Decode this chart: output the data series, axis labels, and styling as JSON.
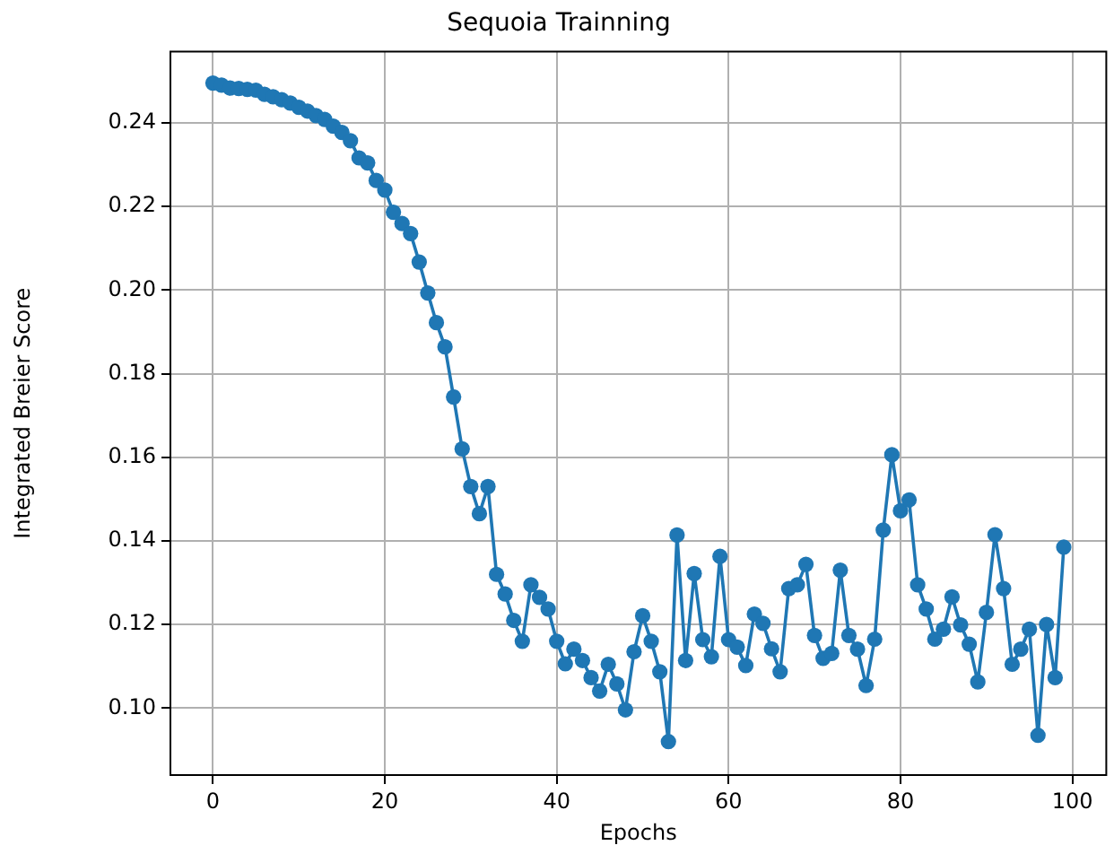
{
  "chart_data": {
    "type": "line",
    "title": "Sequoia Trainning",
    "xlabel": "Epochs",
    "ylabel": "Integrated Breier Score",
    "x": [
      0,
      1,
      2,
      3,
      4,
      5,
      6,
      7,
      8,
      9,
      10,
      11,
      12,
      13,
      14,
      15,
      16,
      17,
      18,
      19,
      20,
      21,
      22,
      23,
      24,
      25,
      26,
      27,
      28,
      29,
      30,
      31,
      32,
      33,
      34,
      35,
      36,
      37,
      38,
      39,
      40,
      41,
      42,
      43,
      44,
      45,
      46,
      47,
      48,
      49,
      50,
      51,
      52,
      53,
      54,
      55,
      56,
      57,
      58,
      59,
      60,
      61,
      62,
      63,
      64,
      65,
      66,
      67,
      68,
      69,
      70,
      71,
      72,
      73,
      74,
      75,
      76,
      77,
      78,
      79,
      80,
      81,
      82,
      83,
      84,
      85,
      86,
      87,
      88,
      89,
      90,
      91,
      92,
      93,
      94,
      95,
      96,
      97,
      98,
      99
    ],
    "series": [
      {
        "color": "#1f77b4",
        "values": [
          0.2495,
          0.249,
          0.2483,
          0.2482,
          0.248,
          0.2478,
          0.2468,
          0.2462,
          0.2455,
          0.2447,
          0.2437,
          0.2428,
          0.2417,
          0.2408,
          0.2392,
          0.2377,
          0.2357,
          0.2316,
          0.2304,
          0.2262,
          0.2239,
          0.2186,
          0.2159,
          0.2135,
          0.2067,
          0.1993,
          0.1922,
          0.1864,
          0.1744,
          0.162,
          0.153,
          0.1465,
          0.153,
          0.132,
          0.1273,
          0.121,
          0.116,
          0.1295,
          0.1265,
          0.1237,
          0.116,
          0.1106,
          0.1141,
          0.1114,
          0.1073,
          0.1041,
          0.1105,
          0.1058,
          0.0996,
          0.1135,
          0.1221,
          0.116,
          0.1087,
          0.092,
          0.1414,
          0.1114,
          0.1322,
          0.1164,
          0.1123,
          0.1363,
          0.1164,
          0.1146,
          0.1102,
          0.1225,
          0.1203,
          0.1142,
          0.1087,
          0.1286,
          0.1295,
          0.1344,
          0.1174,
          0.1119,
          0.1131,
          0.133,
          0.1174,
          0.1141,
          0.1054,
          0.1165,
          0.1426,
          0.1606,
          0.1472,
          0.1498,
          0.1295,
          0.1237,
          0.1165,
          0.1189,
          0.1266,
          0.1199,
          0.1153,
          0.1063,
          0.1229,
          0.1415,
          0.1286,
          0.1105,
          0.1141,
          0.1189,
          0.0935,
          0.12,
          0.1073,
          0.1385
        ]
      }
    ],
    "xlim": [
      -4.95,
      103.95
    ],
    "xticks": [
      0,
      20,
      40,
      60,
      80,
      100
    ],
    "ylim": [
      0.084,
      0.257
    ],
    "yticks": [
      {
        "value": 0.1,
        "label": "0.10"
      },
      {
        "value": 0.12,
        "label": "0.12"
      },
      {
        "value": 0.14,
        "label": "0.14"
      },
      {
        "value": 0.16,
        "label": "0.16"
      },
      {
        "value": 0.18,
        "label": "0.18"
      },
      {
        "value": 0.2,
        "label": "0.20"
      },
      {
        "value": 0.22,
        "label": "0.22"
      },
      {
        "value": 0.24,
        "label": "0.24"
      }
    ],
    "grid": true,
    "marker": "circle",
    "line_style": "solid"
  }
}
